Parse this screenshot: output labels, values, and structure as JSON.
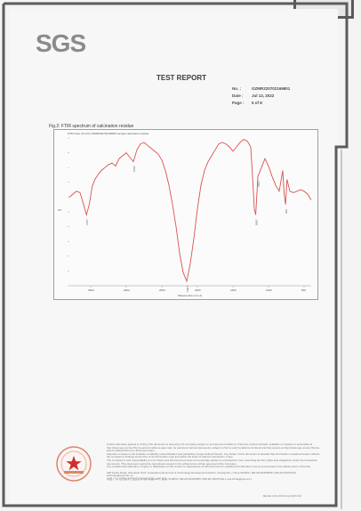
{
  "header": {
    "logo": "SGS",
    "title": "TEST REPORT",
    "meta": [
      {
        "key": "No. :",
        "value": "GZMR220702169801"
      },
      {
        "key": "Date :",
        "value": "Jul 13, 2022"
      },
      {
        "key": "Page :",
        "value": "5 of 8"
      }
    ]
  },
  "figure": {
    "caption": "Fig.2: FTIR spectrum of calcination residue",
    "inner_title": "FTIR trace (Cu Kα) GZMR220702169801 sample calcination residue",
    "xlabel": "Wavenumber (cm-1)",
    "ylabel": "%T"
  },
  "chart_data": {
    "type": "line",
    "title": "Fig.2: FTIR spectrum of calcination residue",
    "xlabel": "Wavenumber (cm-1)",
    "ylabel": "%T",
    "x_ticks": [
      "3500",
      "3000",
      "2500",
      "2000",
      "1500",
      "1000",
      "500"
    ],
    "xlim": [
      3800,
      400
    ],
    "ylim": [
      0,
      100
    ],
    "series": [
      {
        "x": [
          3800,
          3750,
          3700,
          3650,
          3600,
          3560,
          3520,
          3480,
          3440,
          3400,
          3350,
          3300,
          3250,
          3200,
          3150,
          3100,
          3050,
          3000,
          2950,
          2900,
          2850,
          2800,
          2750,
          2700,
          2650,
          2600,
          2550,
          2500,
          2450,
          2400,
          2350,
          2300,
          2250,
          2200,
          2150,
          2100,
          2050,
          2000,
          1950,
          1900,
          1850,
          1800,
          1750,
          1700,
          1650,
          1600,
          1550,
          1500,
          1450,
          1400,
          1350,
          1300,
          1250,
          1220,
          1200,
          1180,
          1150,
          1100,
          1050,
          1000,
          950,
          900,
          850,
          800,
          780,
          760,
          740,
          700,
          650,
          600,
          550,
          500,
          450,
          400
        ],
        "values": [
          60,
          62,
          64,
          63,
          55,
          48,
          55,
          67,
          72,
          75,
          78,
          80,
          82,
          83,
          81,
          86,
          88,
          90,
          87,
          84,
          92,
          96,
          97,
          95,
          93,
          91,
          89,
          85,
          78,
          68,
          55,
          40,
          22,
          9,
          3,
          15,
          32,
          52,
          68,
          78,
          84,
          88,
          92,
          96,
          97,
          96,
          94,
          91,
          94,
          97,
          99,
          98,
          94,
          70,
          52,
          48,
          74,
          80,
          86,
          81,
          74,
          68,
          64,
          78,
          62,
          55,
          72,
          64,
          63,
          64,
          65,
          64,
          62,
          58
        ]
      }
    ],
    "peak_labels": [
      "3437",
      "2921",
      "1384",
      "1089",
      "1030",
      "798"
    ]
  },
  "footer": {
    "seal_text": "SGS",
    "lines": [
      "Unless otherwise agreed in writing, this document is issued by the Company subject to its General Conditions of Service printed overleaf, available on request or accessible at http://www.sgs.com/en/Terms-and-Conditions.aspx and, for electronic format documents, subject to Terms and Conditions for Electronic Documents at http://www.sgs.com/en/Terms-and-Conditions/Terms-e-Document.aspx.",
      "Attention is drawn to the limitation of liability, indemnification and jurisdiction issues defined therein. Any holder of this document is advised that information contained hereon reflects the Company's findings at the time of its intervention only and within the limits of Client's instructions, if any.",
      "The Company's sole responsibility is to its Client and this document does not exonerate parties to a transaction from exercising all their rights and obligations under the transaction documents. This document cannot be reproduced except in full, without prior written approval of the Company.",
      "Any unauthorized alteration, forgery or falsification of the content or appearance of this document is unlawful and offenders may be prosecuted to the fullest extent of the law.",
      "198 Kezhu Road, Scientech Park, Guangzhou Economic & Technology Development District, Guangzhou, China 510663   t (86-20) 82155555   f (86-20) 82075191   www.sgsgroup.com.cn",
      "中国·广州·经济技术开发区科学城科珠路198号   邮编: 510663   t (86-20) 82155555   f (86-20) 82075191   e sgs.china@sgs.com"
    ],
    "member": "Member of the SGS Group (SGS SA)"
  }
}
